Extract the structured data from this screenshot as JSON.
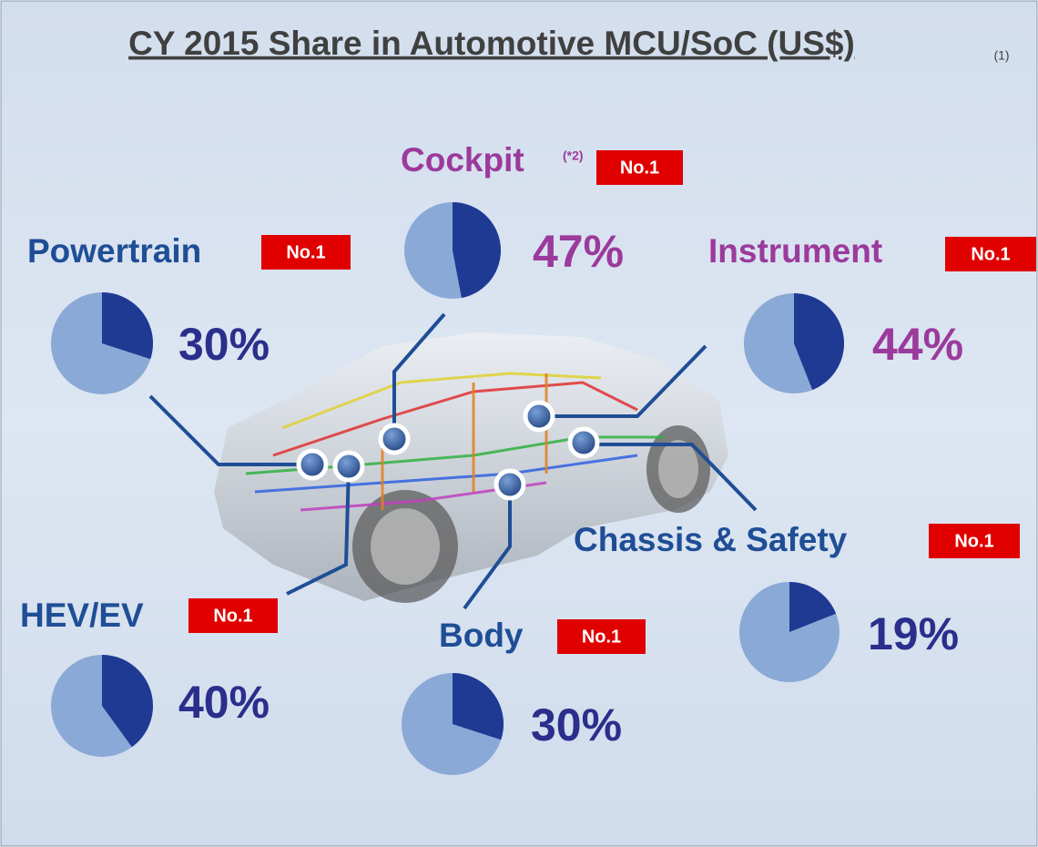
{
  "title": "CY 2015 Share in Automotive MCU/SoC (US$)",
  "footnote": "(1)",
  "chart_data": [
    {
      "type": "pie",
      "title": "Cockpit",
      "note": "(*2)",
      "badge": "No.1",
      "values": [
        47
      ],
      "value_labels": [
        "47%"
      ],
      "color": "#1f3a93",
      "title_color": "#9b3a9c"
    },
    {
      "type": "pie",
      "title": "Powertrain",
      "badge": "No.1",
      "values": [
        30
      ],
      "value_labels": [
        "30%"
      ],
      "color": "#1f3a93",
      "title_color": "#1f4e96"
    },
    {
      "type": "pie",
      "title": "Instrument",
      "badge": "No.1",
      "values": [
        44
      ],
      "value_labels": [
        "44%"
      ],
      "color": "#1f3a93",
      "title_color": "#9b3a9c"
    },
    {
      "type": "pie",
      "title": "Chassis & Safety",
      "badge": "No.1",
      "values": [
        19
      ],
      "value_labels": [
        "19%"
      ],
      "color": "#1f3a93",
      "title_color": "#1f4e96"
    },
    {
      "type": "pie",
      "title": "HEV/EV",
      "badge": "No.1",
      "values": [
        40
      ],
      "value_labels": [
        "40%"
      ],
      "color": "#1f3a93",
      "title_color": "#1f4e96"
    },
    {
      "type": "pie",
      "title": "Body",
      "badge": "No.1",
      "values": [
        30
      ],
      "value_labels": [
        "30%"
      ],
      "color": "#1f3a93",
      "title_color": "#1f4e96"
    }
  ]
}
